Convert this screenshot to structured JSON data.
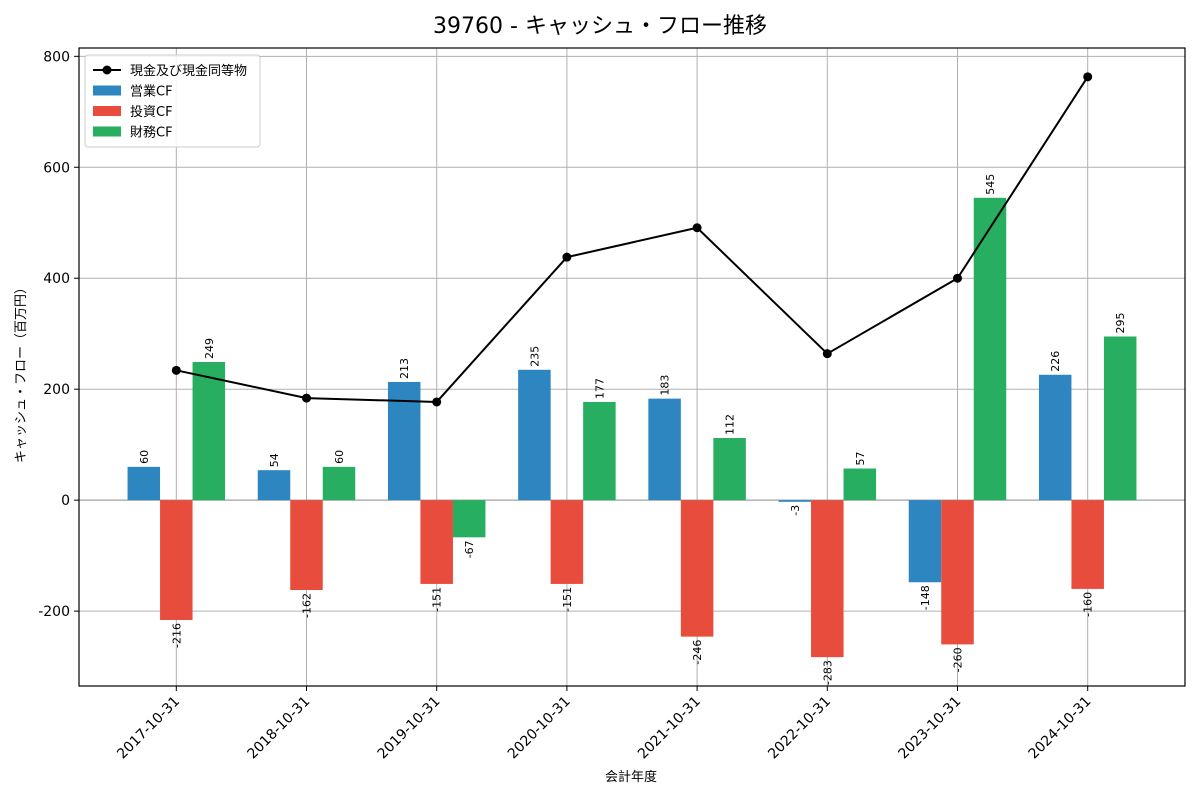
{
  "chart_data": {
    "type": "bar",
    "title": "39760 - キャッシュ・フロー推移",
    "xlabel": "会計年度",
    "ylabel": "キャッシュ・フロー（百万円）",
    "categories": [
      "2017-10-31",
      "2018-10-31",
      "2019-10-31",
      "2020-10-31",
      "2021-10-31",
      "2022-10-31",
      "2023-10-31",
      "2024-10-31"
    ],
    "series": [
      {
        "name": "営業CF",
        "type": "bar",
        "color": "#2e86c1",
        "values": [
          60,
          54,
          213,
          235,
          183,
          -3,
          -148,
          226
        ]
      },
      {
        "name": "投資CF",
        "type": "bar",
        "color": "#e74c3c",
        "values": [
          -216,
          -162,
          -151,
          -151,
          -246,
          -283,
          -260,
          -160
        ]
      },
      {
        "name": "財務CF",
        "type": "bar",
        "color": "#27ae60",
        "values": [
          249,
          60,
          -67,
          177,
          112,
          57,
          545,
          295
        ]
      },
      {
        "name": "現金及び現金同等物",
        "type": "line",
        "color": "#000000",
        "values": [
          234,
          184,
          177,
          438,
          491,
          264,
          400,
          763
        ]
      }
    ],
    "legend_order": [
      "現金及び現金同等物",
      "営業CF",
      "投資CF",
      "財務CF"
    ],
    "legend_position": "top-left",
    "ylim": [
      -335,
      815
    ],
    "yticks": [
      -200,
      0,
      200,
      400,
      600,
      800
    ],
    "grid": true
  }
}
